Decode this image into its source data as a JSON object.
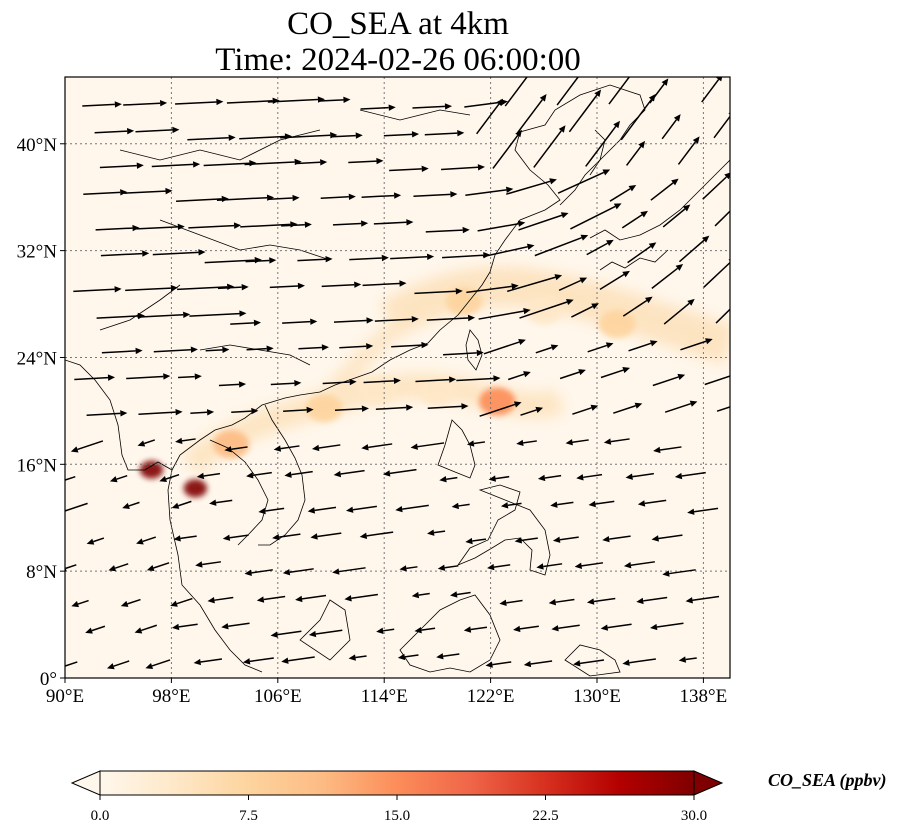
{
  "title": {
    "line1": "CO_SEA at 4km",
    "line2": "Time: 2024-02-26 06:00:00"
  },
  "map": {
    "lon_range": [
      90,
      140
    ],
    "lat_range": [
      0,
      45
    ],
    "lon_ticks": [
      "90°E",
      "98°E",
      "106°E",
      "114°E",
      "122°E",
      "130°E",
      "138°E"
    ],
    "lat_ticks": [
      "0°",
      "8°N",
      "16°N",
      "24°N",
      "32°N",
      "40°N"
    ],
    "gridlines": true,
    "field_name": "CO_SEA",
    "plume_hotspots": [
      {
        "lon": 96.5,
        "lat": 15.6,
        "value": 30
      },
      {
        "lon": 99.8,
        "lat": 14.2,
        "value": 30
      },
      {
        "lon": 102.5,
        "lat": 17.5,
        "value": 10
      },
      {
        "lon": 109.5,
        "lat": 20.2,
        "value": 6
      },
      {
        "lon": 113.5,
        "lat": 21.5,
        "value": 5
      },
      {
        "lon": 118.0,
        "lat": 21.4,
        "value": 5
      },
      {
        "lon": 122.5,
        "lat": 20.7,
        "value": 14
      },
      {
        "lon": 120.0,
        "lat": 28.2,
        "value": 7
      },
      {
        "lon": 126.0,
        "lat": 27.5,
        "value": 5
      },
      {
        "lon": 131.5,
        "lat": 26.5,
        "value": 6
      }
    ]
  },
  "colorbar": {
    "label": "CO_SEA (ppbv)",
    "ticks": [
      "0.0",
      "7.5",
      "15.0",
      "22.5",
      "30.0"
    ],
    "min": 0,
    "max": 30,
    "extend": "both",
    "colormap": [
      "#fff7ec",
      "#fee8c8",
      "#fdd49e",
      "#fdbb84",
      "#fc8d59",
      "#ef6548",
      "#d7301f",
      "#b30000",
      "#7f0000"
    ]
  }
}
